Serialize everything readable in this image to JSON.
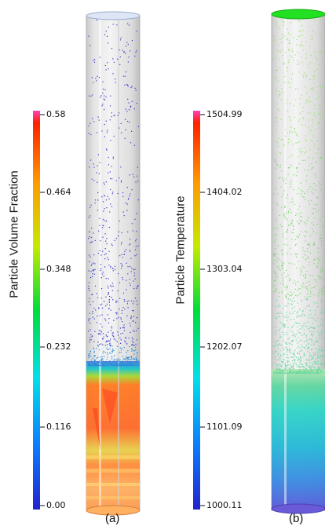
{
  "panel_a": {
    "caption": "(a)",
    "colorbar_title": "Particle Volume Fraction",
    "ticks": [
      "0.58",
      "0.464",
      "0.348",
      "0.232",
      "0.116",
      "0.00"
    ]
  },
  "panel_b": {
    "caption": "(b)",
    "colorbar_title": "Particle Temperature",
    "ticks": [
      "1504.99",
      "1404.02",
      "1303.04",
      "1202.07",
      "1101.09",
      "1000.11"
    ]
  },
  "colormap": [
    "#2020d0",
    "#0090ff",
    "#00e8e8",
    "#00dd40",
    "#c8e800",
    "#ffb000",
    "#ff2000",
    "#ff40c0"
  ]
}
